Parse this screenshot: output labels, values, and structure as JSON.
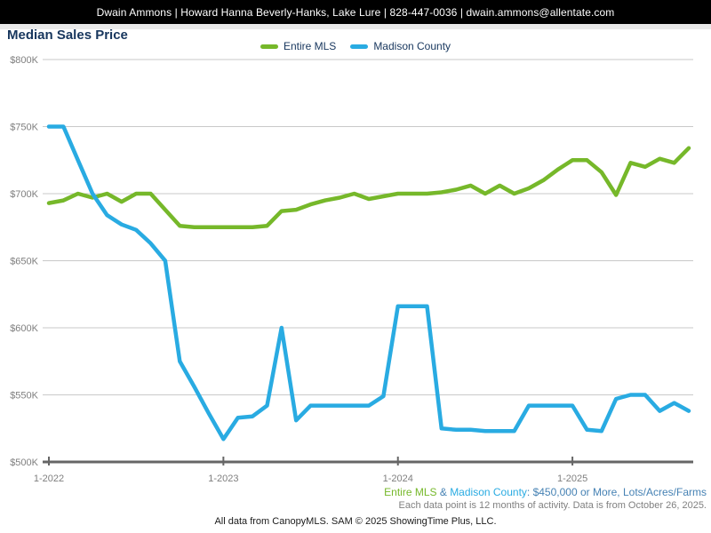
{
  "header": {
    "text": "Dwain Ammons | Howard Hanna Beverly-Hanks, Lake Lure | 828-447-0036 | dwain.ammons@allentate.com"
  },
  "title": {
    "text": "Median Sales Price"
  },
  "legend": {
    "items": [
      {
        "label": "Entire MLS",
        "color": "#76b82a"
      },
      {
        "label": "Madison County",
        "color": "#29abe2"
      }
    ]
  },
  "chart_data": {
    "type": "line",
    "title": "Median Sales Price",
    "ylabel": "Median Sales Price ($K)",
    "ylim": [
      500,
      800
    ],
    "y_ticks": [
      800,
      750,
      700,
      650,
      600,
      550,
      500
    ],
    "y_tick_labels": [
      "$800K",
      "$750K",
      "$700K",
      "$650K",
      "$600K",
      "$550K",
      "$500K"
    ],
    "grid": "horizontal",
    "legend_position": "top-center",
    "x_tick_indices": [
      0,
      12,
      24,
      36
    ],
    "x_tick_labels": [
      "1-2022",
      "1-2023",
      "1-2024",
      "1-2025"
    ],
    "months": [
      "1-2022",
      "2-2022",
      "3-2022",
      "4-2022",
      "5-2022",
      "6-2022",
      "7-2022",
      "8-2022",
      "9-2022",
      "10-2022",
      "11-2022",
      "12-2022",
      "1-2023",
      "2-2023",
      "3-2023",
      "4-2023",
      "5-2023",
      "6-2023",
      "7-2023",
      "8-2023",
      "9-2023",
      "10-2023",
      "11-2023",
      "12-2023",
      "1-2024",
      "2-2024",
      "3-2024",
      "4-2024",
      "5-2024",
      "6-2024",
      "7-2024",
      "8-2024",
      "9-2024",
      "10-2024",
      "11-2024",
      "12-2024",
      "1-2025",
      "2-2025",
      "3-2025",
      "4-2025",
      "5-2025",
      "6-2025",
      "7-2025",
      "8-2025",
      "9-2025"
    ],
    "series": [
      {
        "name": "Entire MLS",
        "color": "#76b82a",
        "unit": "thousand USD",
        "values": [
          693,
          695,
          700,
          697,
          700,
          694,
          700,
          700,
          688,
          676,
          675,
          675,
          675,
          675,
          675,
          676,
          687,
          688,
          692,
          695,
          697,
          700,
          696,
          698,
          700,
          700,
          700,
          701,
          703,
          706,
          700,
          706,
          700,
          704,
          710,
          718,
          725,
          725,
          716,
          699,
          723,
          720,
          726,
          723,
          734
        ]
      },
      {
        "name": "Madison County",
        "color": "#29abe2",
        "unit": "thousand USD",
        "values": [
          750,
          750,
          725,
          700,
          684,
          677,
          673,
          663,
          650,
          575,
          556,
          536,
          517,
          533,
          534,
          542,
          600,
          531,
          542,
          542,
          542,
          542,
          542,
          549,
          616,
          616,
          616,
          525,
          524,
          524,
          523,
          523,
          523,
          542,
          542,
          542,
          542,
          524,
          523,
          547,
          550,
          550,
          538,
          544,
          538
        ]
      }
    ]
  },
  "footer": {
    "filter_entire": "Entire MLS",
    "filter_amp": " & ",
    "filter_madison": "Madison County",
    "filter_rest": ": $450,000 or More, Lots/Acres/Farms",
    "note": "Each data point is 12 months of activity. Data is from October 26, 2025.",
    "copyright": "All data from CanopyMLS. SAM © 2025 ShowingTime Plus, LLC."
  }
}
